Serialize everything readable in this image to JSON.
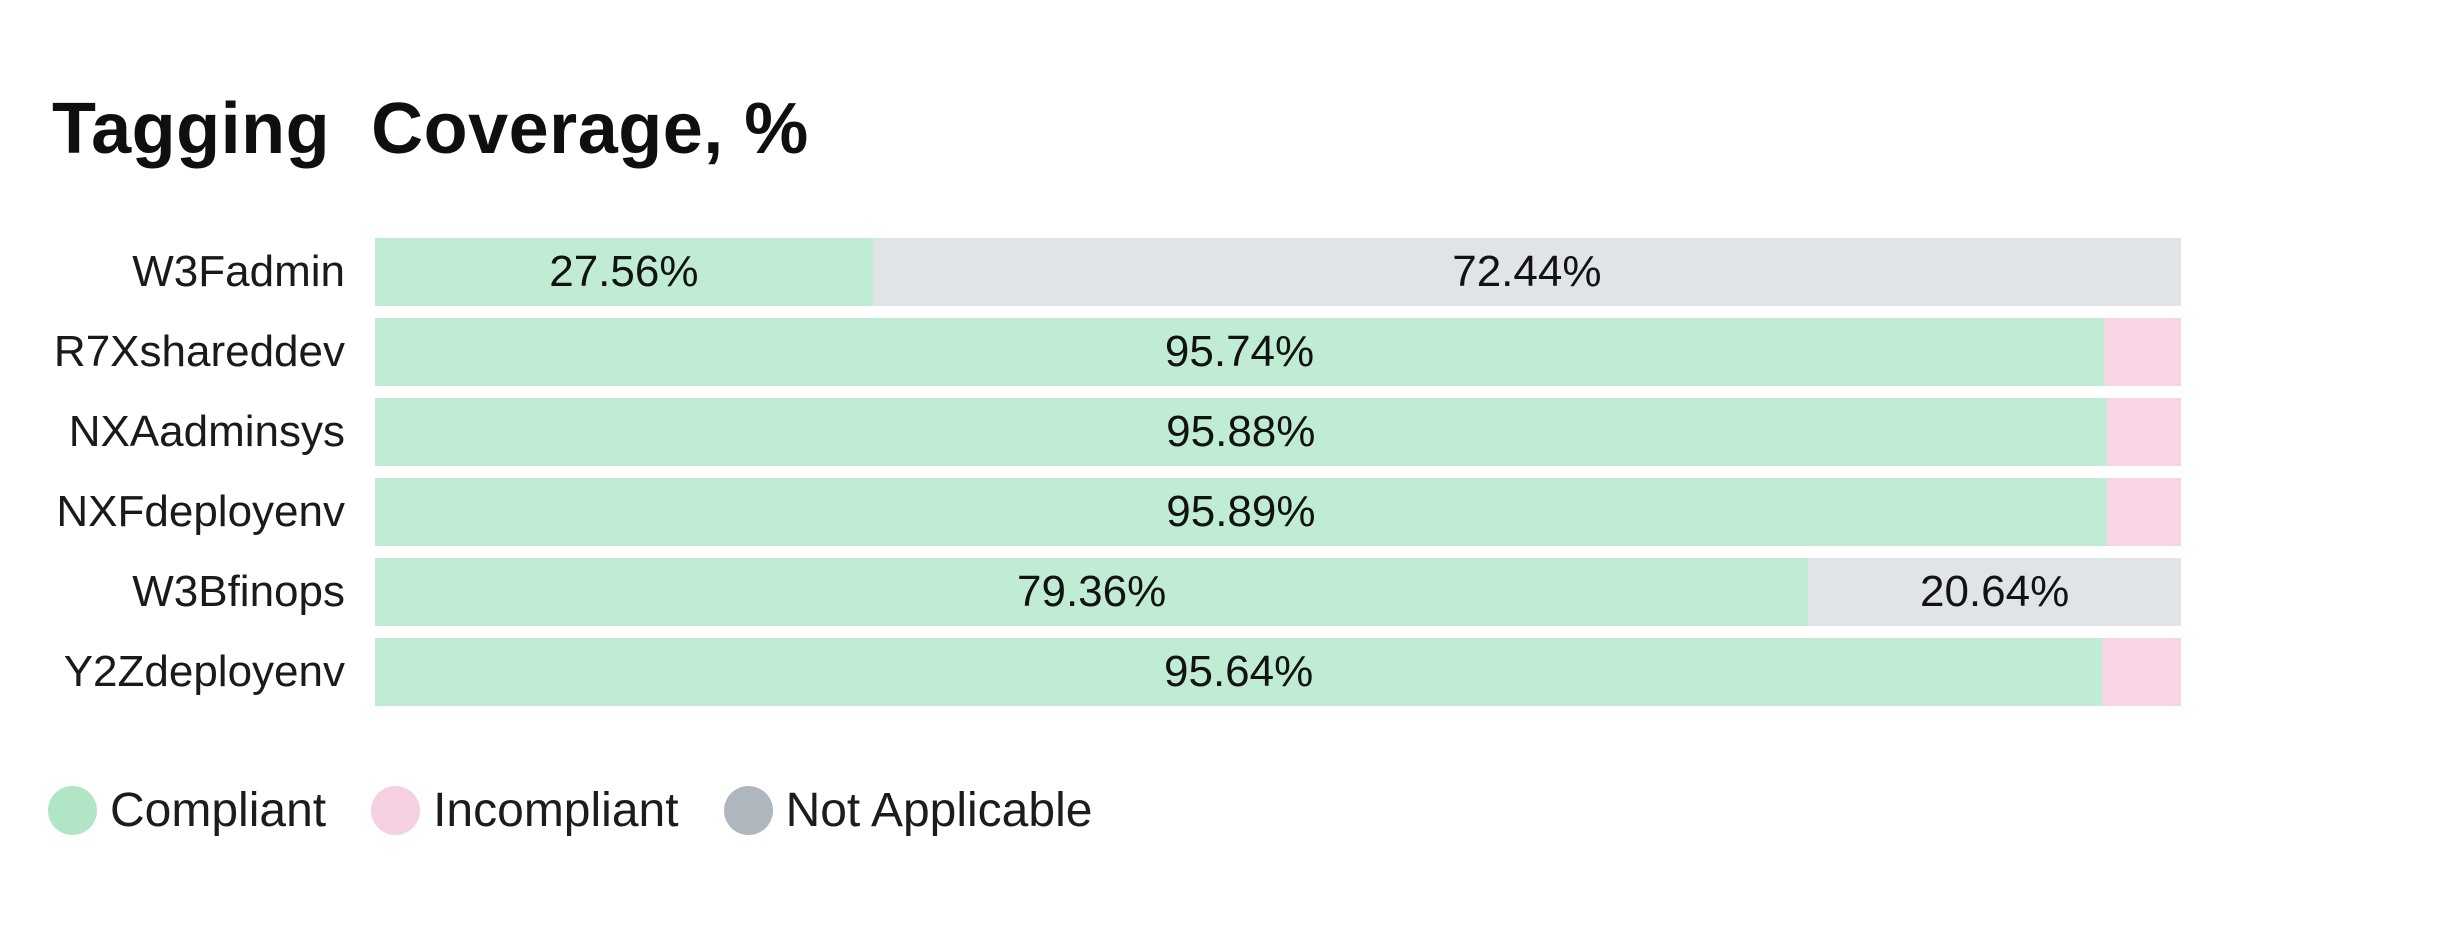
{
  "title": "Tagging  Coverage, %",
  "colors": {
    "background": "#ffffff",
    "text": "#161616",
    "bar": {
      "compliant": "#c0ecd4",
      "incompliant": "#f7d5e4",
      "not_applicable": "#e0e3e8"
    },
    "legend_dot": {
      "compliant": "#b0e5c6",
      "incompliant": "#f6d0e0",
      "not_applicable": "#b0b6bd"
    }
  },
  "legend": {
    "items": [
      {
        "key": "compliant",
        "label": "Compliant"
      },
      {
        "key": "incompliant",
        "label": "Incompliant"
      },
      {
        "key": "not_applicable",
        "label": "Not Applicable"
      }
    ]
  },
  "chart_data": {
    "type": "bar",
    "orientation": "horizontal",
    "stacked": true,
    "title": "Tagging  Coverage, %",
    "xlim": [
      0,
      100
    ],
    "grid": false,
    "legend_position": "bottom",
    "categories": [
      "W3Fadmin",
      "R7Xshareddev",
      "NXAadminsys",
      "NXFdeployenv",
      "W3Bfinops",
      "Y2Zdeployenv"
    ],
    "series": [
      {
        "key": "compliant",
        "name": "Compliant",
        "values": [
          27.56,
          95.74,
          95.88,
          95.89,
          79.36,
          95.64
        ]
      },
      {
        "key": "incompliant",
        "name": "Incompliant",
        "values": [
          0,
          4.26,
          4.12,
          4.11,
          0,
          4.36
        ]
      },
      {
        "key": "not_applicable",
        "name": "Not Applicable",
        "values": [
          72.44,
          0,
          0,
          0,
          20.64,
          0
        ]
      }
    ],
    "bar_labels": [
      [
        "27.56%",
        "",
        "72.44%"
      ],
      [
        "95.74%",
        "",
        ""
      ],
      [
        "95.88%",
        "",
        ""
      ],
      [
        "95.89%",
        "",
        ""
      ],
      [
        "79.36%",
        "",
        "20.64%"
      ],
      [
        "95.64%",
        "",
        ""
      ]
    ]
  }
}
